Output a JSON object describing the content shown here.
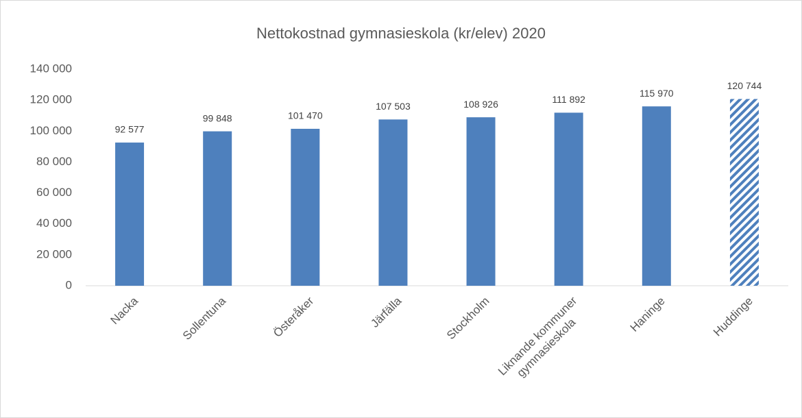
{
  "chart_data": {
    "type": "bar",
    "title": "Nettokostnad gymnasieskola (kr/elev) 2020",
    "categories": [
      "Nacka",
      "Sollentuna",
      "Österåker",
      "Järfälla",
      "Stockholm",
      "Liknande kommuner\ngymnasieskola",
      "Haninge",
      "Huddinge"
    ],
    "values": [
      92577,
      99848,
      101470,
      107503,
      108926,
      111892,
      115970,
      120744
    ],
    "value_labels": [
      "92 577",
      "99 848",
      "101 470",
      "107 503",
      "108 926",
      "111 892",
      "115 970",
      "120 744"
    ],
    "hatched": [
      false,
      false,
      false,
      false,
      false,
      false,
      false,
      true
    ],
    "color": "#4e80bd",
    "ylim": [
      0,
      140000
    ],
    "yticks": [
      0,
      {
        "value": 20000,
        "label": "20 000"
      },
      {
        "value": 40000,
        "label": "40 000"
      },
      {
        "value": 60000,
        "label": "60 000"
      },
      {
        "value": 80000,
        "label": "80 000"
      },
      {
        "value": 100000,
        "label": "100 000"
      },
      {
        "value": 120000,
        "label": "120 000"
      },
      {
        "value": 140000,
        "label": "140 000"
      }
    ],
    "grid": false
  }
}
